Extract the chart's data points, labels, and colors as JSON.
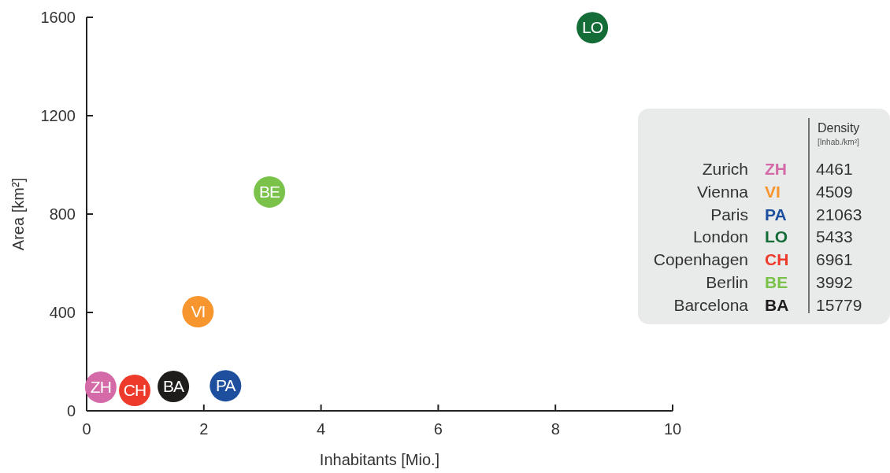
{
  "chart_data": [
    {
      "type": "scatter",
      "xlabel": "Inhabitants [Mio.]",
      "ylabel": "Area [km²]",
      "xlim": [
        0,
        10
      ],
      "ylim": [
        0,
        1600
      ],
      "xticks": [
        0,
        2,
        4,
        6,
        8,
        10
      ],
      "yticks": [
        0,
        400,
        800,
        1200,
        1600
      ],
      "marker": "circle",
      "series": [
        {
          "name": "ZH",
          "color": "#d46aa8",
          "x": [
            0.24
          ],
          "values": [
            96
          ]
        },
        {
          "name": "VI",
          "color": "#f7962f",
          "x": [
            1.9
          ],
          "values": [
            403
          ]
        },
        {
          "name": "PA",
          "color": "#1d4f9e",
          "x": [
            2.37
          ],
          "values": [
            102
          ]
        },
        {
          "name": "LO",
          "color": "#146c37",
          "x": [
            8.63
          ],
          "values": [
            1558
          ]
        },
        {
          "name": "CH",
          "color": "#ee3a2a",
          "x": [
            0.82
          ],
          "values": [
            83
          ]
        },
        {
          "name": "BE",
          "color": "#7bc24b",
          "x": [
            3.12
          ],
          "values": [
            890
          ]
        },
        {
          "name": "BA",
          "color": "#1f1d1c",
          "x": [
            1.48
          ],
          "values": [
            99
          ]
        }
      ]
    },
    {
      "type": "other",
      "title": "Density",
      "subtitle": "[Inhab./km²]",
      "categories": [
        "Zurich",
        "Vienna",
        "Paris",
        "London",
        "Copenhagen",
        "Berlin",
        "Barcelona"
      ],
      "values": [
        4461,
        4509,
        21063,
        5433,
        6961,
        3992,
        15779
      ],
      "data_labels": true
    }
  ]
}
